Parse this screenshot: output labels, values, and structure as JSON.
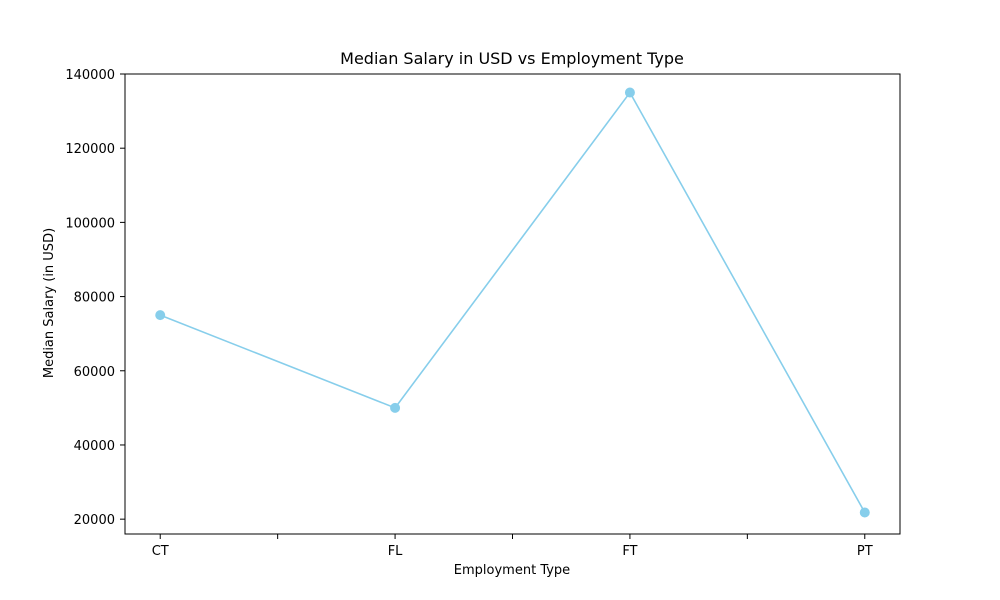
{
  "chart_data": {
    "type": "line",
    "title": "Median Salary in USD vs Employment Type",
    "xlabel": "Employment Type",
    "ylabel": "Median Salary (in USD)",
    "categories": [
      "CT",
      "FL",
      "FT",
      "PT"
    ],
    "series": [
      {
        "values": [
          75000,
          50000,
          135000,
          21800
        ],
        "color": "#87CEEB"
      }
    ],
    "y_ticks": [
      20000,
      40000,
      60000,
      80000,
      100000,
      120000,
      140000
    ],
    "ylim": [
      16000,
      140000
    ],
    "grid": false,
    "legend": "none",
    "marker": "circle"
  }
}
